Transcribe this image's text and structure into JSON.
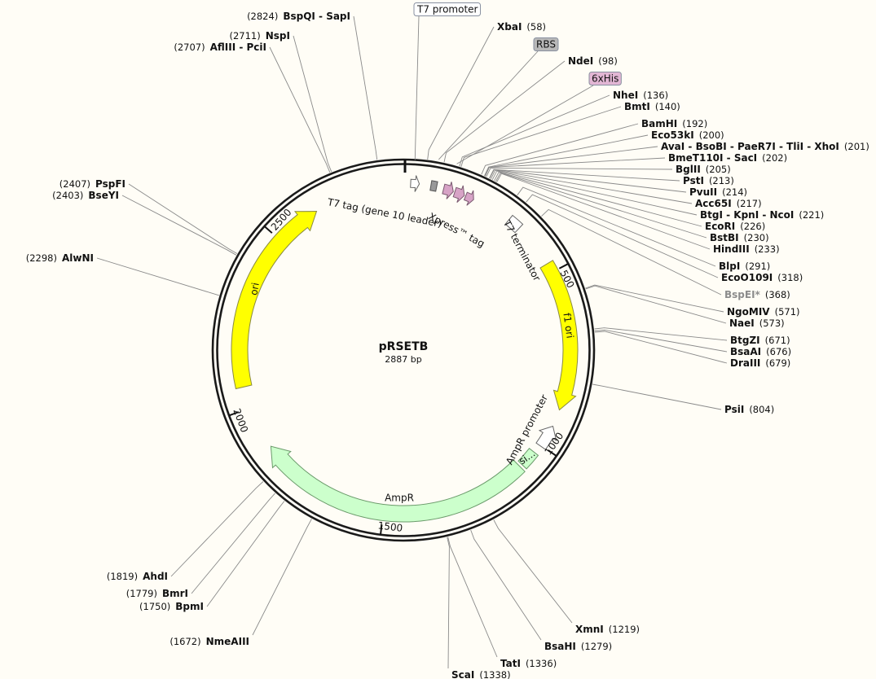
{
  "map": {
    "name": "pRSETB",
    "length": {
      "value": 2887,
      "label": "2887 bp"
    }
  },
  "ticks": [
    500,
    1000,
    1500,
    2000,
    2500
  ],
  "features": [
    {
      "label": "T7 promoter"
    },
    {
      "label": "RBS"
    },
    {
      "label": "6xHis"
    },
    {
      "label": "T7 tag (gene 10 leader)"
    },
    {
      "label": "Xpress™ tag"
    },
    {
      "label": "T7 terminator"
    },
    {
      "label": "f1 ori"
    },
    {
      "label": "AmpR promoter"
    },
    {
      "label": "si..."
    },
    {
      "label": "AmpR"
    },
    {
      "label": "ori"
    }
  ],
  "sites": [
    {
      "name": "XbaI",
      "position": {
        "value": 58,
        "label": "(58)"
      }
    },
    {
      "name": "NdeI",
      "position": {
        "value": 98,
        "label": "(98)"
      }
    },
    {
      "name": "NheI",
      "position": {
        "value": 136,
        "label": "(136)"
      }
    },
    {
      "name": "BmtI",
      "position": {
        "value": 140,
        "label": "(140)"
      }
    },
    {
      "name": "BamHI",
      "position": {
        "value": 192,
        "label": "(192)"
      }
    },
    {
      "name": "Eco53kI",
      "position": {
        "value": 200,
        "label": "(200)"
      }
    },
    {
      "name": "AvaI - BsoBI - PaeR7I - TliI - XhoI",
      "position": {
        "value": 201,
        "label": "(201)"
      }
    },
    {
      "name": "BmeT110I - SacI",
      "position": {
        "value": 202,
        "label": "(202)"
      }
    },
    {
      "name": "BglII",
      "position": {
        "value": 205,
        "label": "(205)"
      }
    },
    {
      "name": "PstI",
      "position": {
        "value": 213,
        "label": "(213)"
      }
    },
    {
      "name": "PvuII",
      "position": {
        "value": 214,
        "label": "(214)"
      }
    },
    {
      "name": "Acc65I",
      "position": {
        "value": 217,
        "label": "(217)"
      }
    },
    {
      "name": "BtgI - KpnI - NcoI",
      "position": {
        "value": 221,
        "label": "(221)"
      }
    },
    {
      "name": "EcoRI",
      "position": {
        "value": 226,
        "label": "(226)"
      }
    },
    {
      "name": "BstBI",
      "position": {
        "value": 230,
        "label": "(230)"
      }
    },
    {
      "name": "HindIII",
      "position": {
        "value": 233,
        "label": "(233)"
      }
    },
    {
      "name": "BlpI",
      "position": {
        "value": 291,
        "label": "(291)"
      }
    },
    {
      "name": "EcoO109I",
      "position": {
        "value": 318,
        "label": "(318)"
      }
    },
    {
      "name": "BspEI*",
      "position": {
        "value": 368,
        "label": "(368)"
      },
      "color": "#8c8c8c"
    },
    {
      "name": "NgoMIV",
      "position": {
        "value": 571,
        "label": "(571)"
      }
    },
    {
      "name": "NaeI",
      "position": {
        "value": 573,
        "label": "(573)"
      }
    },
    {
      "name": "BtgZI",
      "position": {
        "value": 671,
        "label": "(671)"
      }
    },
    {
      "name": "BsaAI",
      "position": {
        "value": 676,
        "label": "(676)"
      }
    },
    {
      "name": "DraIII",
      "position": {
        "value": 679,
        "label": "(679)"
      }
    },
    {
      "name": "PsiI",
      "position": {
        "value": 804,
        "label": "(804)"
      }
    },
    {
      "name": "XmnI",
      "position": {
        "value": 1219,
        "label": "(1219)"
      }
    },
    {
      "name": "BsaHI",
      "position": {
        "value": 1279,
        "label": "(1279)"
      }
    },
    {
      "name": "TatI",
      "position": {
        "value": 1336,
        "label": "(1336)"
      }
    },
    {
      "name": "ScaI",
      "position": {
        "value": 1338,
        "label": "(1338)"
      }
    },
    {
      "name": "NmeAIII",
      "position": {
        "value": 1672,
        "label": "(1672)"
      }
    },
    {
      "name": "BpmI",
      "position": {
        "value": 1750,
        "label": "(1750)"
      }
    },
    {
      "name": "BmrI",
      "position": {
        "value": 1779,
        "label": "(1779)"
      }
    },
    {
      "name": "AhdI",
      "position": {
        "value": 1819,
        "label": "(1819)"
      }
    },
    {
      "name": "AlwNI",
      "position": {
        "value": 2298,
        "label": "(2298)"
      }
    },
    {
      "name": "BseYI",
      "position": {
        "value": 2403,
        "label": "(2403)"
      }
    },
    {
      "name": "PspFI",
      "position": {
        "value": 2407,
        "label": "(2407)"
      }
    },
    {
      "name": "AflIII - PciI",
      "position": {
        "value": 2707,
        "label": "(2707)"
      }
    },
    {
      "name": "NspI",
      "position": {
        "value": 2711,
        "label": "(2711)"
      }
    },
    {
      "name": "BspQI - SapI",
      "position": {
        "value": 2824,
        "label": "(2824)"
      }
    }
  ]
}
